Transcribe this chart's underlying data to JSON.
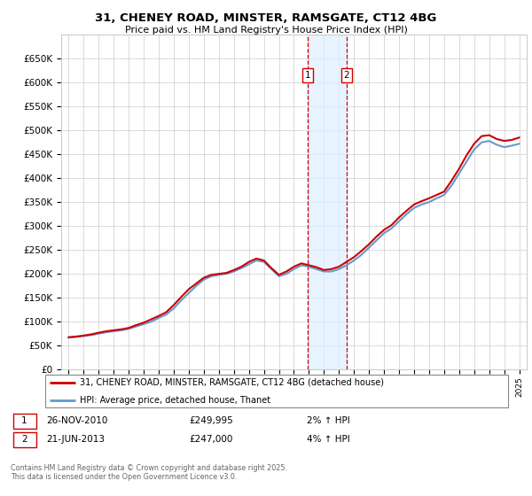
{
  "title": "31, CHENEY ROAD, MINSTER, RAMSGATE, CT12 4BG",
  "subtitle": "Price paid vs. HM Land Registry's House Price Index (HPI)",
  "ylim": [
    0,
    700000
  ],
  "yticks": [
    0,
    50000,
    100000,
    150000,
    200000,
    250000,
    300000,
    350000,
    400000,
    450000,
    500000,
    550000,
    600000,
    650000
  ],
  "ytick_labels": [
    "£0",
    "£50K",
    "£100K",
    "£150K",
    "£200K",
    "£250K",
    "£300K",
    "£350K",
    "£400K",
    "£450K",
    "£500K",
    "£550K",
    "£600K",
    "£650K"
  ],
  "legend_line1": "31, CHENEY ROAD, MINSTER, RAMSGATE, CT12 4BG (detached house)",
  "legend_line2": "HPI: Average price, detached house, Thanet",
  "transaction1_date": "26-NOV-2010",
  "transaction1_price": 249995,
  "transaction1_hpi": "2% ↑ HPI",
  "transaction2_date": "21-JUN-2013",
  "transaction2_price": 247000,
  "transaction2_hpi": "4% ↑ HPI",
  "footer": "Contains HM Land Registry data © Crown copyright and database right 2025.\nThis data is licensed under the Open Government Licence v3.0.",
  "line_color_red": "#cc0000",
  "line_color_blue": "#6699cc",
  "transaction_marker_color": "#cc0000",
  "shade_color": "#ddeeff",
  "grid_color": "#cccccc",
  "bg_color": "#ffffff",
  "transaction1_x": 2010.9,
  "transaction2_x": 2013.5,
  "hpi_data": [
    [
      1995,
      67000
    ],
    [
      1995.5,
      68000
    ],
    [
      1996,
      70000
    ],
    [
      1996.5,
      72000
    ],
    [
      1997,
      75000
    ],
    [
      1997.5,
      78000
    ],
    [
      1998,
      80000
    ],
    [
      1998.5,
      82000
    ],
    [
      1999,
      85000
    ],
    [
      1999.5,
      90000
    ],
    [
      2000,
      95000
    ],
    [
      2000.5,
      100000
    ],
    [
      2001,
      108000
    ],
    [
      2001.5,
      115000
    ],
    [
      2002,
      128000
    ],
    [
      2002.5,
      145000
    ],
    [
      2003,
      160000
    ],
    [
      2003.5,
      175000
    ],
    [
      2004,
      188000
    ],
    [
      2004.5,
      195000
    ],
    [
      2005,
      198000
    ],
    [
      2005.5,
      200000
    ],
    [
      2006,
      205000
    ],
    [
      2006.5,
      212000
    ],
    [
      2007,
      220000
    ],
    [
      2007.5,
      228000
    ],
    [
      2008,
      225000
    ],
    [
      2008.5,
      210000
    ],
    [
      2009,
      195000
    ],
    [
      2009.5,
      200000
    ],
    [
      2010,
      210000
    ],
    [
      2010.5,
      218000
    ],
    [
      2011,
      215000
    ],
    [
      2011.5,
      210000
    ],
    [
      2012,
      205000
    ],
    [
      2012.5,
      205000
    ],
    [
      2013,
      210000
    ],
    [
      2013.5,
      218000
    ],
    [
      2014,
      228000
    ],
    [
      2014.5,
      240000
    ],
    [
      2015,
      255000
    ],
    [
      2015.5,
      270000
    ],
    [
      2016,
      285000
    ],
    [
      2016.5,
      295000
    ],
    [
      2017,
      310000
    ],
    [
      2017.5,
      325000
    ],
    [
      2018,
      338000
    ],
    [
      2018.5,
      345000
    ],
    [
      2019,
      350000
    ],
    [
      2019.5,
      358000
    ],
    [
      2020,
      365000
    ],
    [
      2020.5,
      385000
    ],
    [
      2021,
      410000
    ],
    [
      2021.5,
      435000
    ],
    [
      2022,
      460000
    ],
    [
      2022.5,
      475000
    ],
    [
      2023,
      478000
    ],
    [
      2023.5,
      470000
    ],
    [
      2024,
      465000
    ],
    [
      2024.5,
      468000
    ],
    [
      2025,
      472000
    ]
  ],
  "price_data": [
    [
      1995,
      67500
    ],
    [
      1995.5,
      69000
    ],
    [
      1996,
      71000
    ],
    [
      1996.5,
      73500
    ],
    [
      1997,
      77000
    ],
    [
      1997.5,
      80000
    ],
    [
      1998,
      82000
    ],
    [
      1998.5,
      84000
    ],
    [
      1999,
      87000
    ],
    [
      1999.5,
      93000
    ],
    [
      2000,
      98000
    ],
    [
      2000.5,
      105000
    ],
    [
      2001,
      112000
    ],
    [
      2001.5,
      120000
    ],
    [
      2002,
      135000
    ],
    [
      2002.5,
      152000
    ],
    [
      2003,
      168000
    ],
    [
      2003.5,
      180000
    ],
    [
      2004,
      192000
    ],
    [
      2004.5,
      198000
    ],
    [
      2005,
      200000
    ],
    [
      2005.5,
      202000
    ],
    [
      2006,
      208000
    ],
    [
      2006.5,
      215000
    ],
    [
      2007,
      225000
    ],
    [
      2007.5,
      232000
    ],
    [
      2008,
      228000
    ],
    [
      2008.5,
      212000
    ],
    [
      2009,
      198000
    ],
    [
      2009.5,
      205000
    ],
    [
      2010,
      215000
    ],
    [
      2010.5,
      222000
    ],
    [
      2011,
      218000
    ],
    [
      2011.5,
      214000
    ],
    [
      2012,
      208000
    ],
    [
      2012.5,
      210000
    ],
    [
      2013,
      215000
    ],
    [
      2013.5,
      225000
    ],
    [
      2014,
      235000
    ],
    [
      2014.5,
      248000
    ],
    [
      2015,
      262000
    ],
    [
      2015.5,
      278000
    ],
    [
      2016,
      292000
    ],
    [
      2016.5,
      302000
    ],
    [
      2017,
      318000
    ],
    [
      2017.5,
      332000
    ],
    [
      2018,
      345000
    ],
    [
      2018.5,
      352000
    ],
    [
      2019,
      358000
    ],
    [
      2019.5,
      365000
    ],
    [
      2020,
      372000
    ],
    [
      2020.5,
      395000
    ],
    [
      2021,
      420000
    ],
    [
      2021.5,
      448000
    ],
    [
      2022,
      472000
    ],
    [
      2022.5,
      488000
    ],
    [
      2023,
      490000
    ],
    [
      2023.5,
      482000
    ],
    [
      2024,
      478000
    ],
    [
      2024.5,
      480000
    ],
    [
      2025,
      485000
    ]
  ]
}
